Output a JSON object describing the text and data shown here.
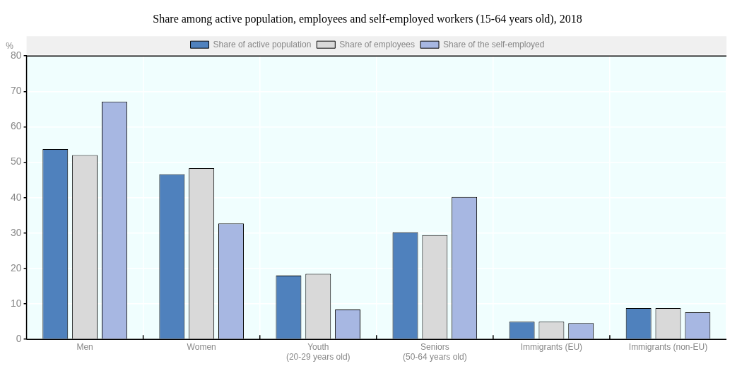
{
  "chart_data": {
    "type": "bar",
    "title": "Share among active population, employees and self-employed workers (15-64 years old), 2018",
    "ylabel": "%",
    "categories": [
      "Men",
      "Women",
      "Youth\n(20-29 years old)",
      "Seniors\n(50-64 years old)",
      "Immigrants (EU)",
      "Immigrants (non-EU)"
    ],
    "series": [
      {
        "name": "Share of active population",
        "color": "#4f81bd",
        "values": [
          53.7,
          46.6,
          18.0,
          30.2,
          5.0,
          8.8
        ]
      },
      {
        "name": "Share of employees",
        "color": "#d9d9d9",
        "values": [
          52.0,
          48.3,
          18.5,
          29.4,
          5.0,
          8.8
        ]
      },
      {
        "name": "Share of the self-employed",
        "color": "#a7b7e2",
        "values": [
          67.1,
          32.7,
          8.4,
          40.2,
          4.6,
          7.6
        ]
      }
    ],
    "ylim": [
      0,
      80
    ],
    "yticks": [
      0,
      10,
      20,
      30,
      40,
      50,
      60,
      70,
      80
    ],
    "grid": true,
    "legend": "top"
  }
}
